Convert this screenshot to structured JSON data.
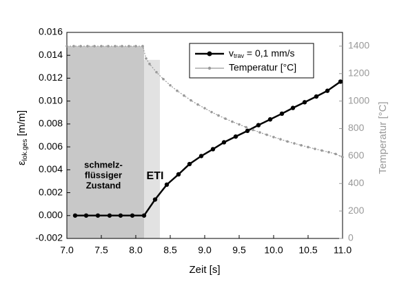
{
  "chart_data": {
    "type": "line",
    "xlabel": "Zeit [s]",
    "ylabel": {
      "symbol": "ε",
      "sub": "lok.ges",
      "unit": " [m/m]"
    },
    "y2label": "Temperatur [°C]",
    "xlim": [
      7.0,
      11.0
    ],
    "xticks": [
      {
        "value": 7.0,
        "label": "7.0"
      },
      7.5,
      {
        "value": 8.0,
        "label": "8.0"
      },
      8.5,
      {
        "value": 9.0,
        "label": "9.0"
      },
      9.5,
      {
        "value": 10.0,
        "label": "10.0"
      },
      10.5,
      {
        "value": 11.0,
        "label": "11.0"
      }
    ],
    "ylim": [
      -0.002,
      0.016
    ],
    "yticks": [
      -0.002,
      {
        "value": 0.0,
        "label": "0.000"
      },
      0.002,
      0.004,
      0.006,
      0.008,
      {
        "value": 0.01,
        "label": "0.010"
      },
      0.012,
      0.014,
      0.016
    ],
    "y2lim": [
      0,
      1500
    ],
    "y2ticks": [
      0,
      200,
      400,
      600,
      800,
      1000,
      1200,
      1400
    ],
    "regions": [
      {
        "x": [
          7.0,
          8.12
        ],
        "top": 1400,
        "color": "#c8c8c8",
        "label": [
          "schmelz-",
          "flüssiger",
          "Zustand"
        ]
      },
      {
        "x": [
          8.12,
          8.35
        ],
        "top": 1300,
        "color": "#e2e2e2",
        "label": [
          "ETI"
        ]
      }
    ],
    "series": [
      {
        "name": {
          "symbol": "v",
          "sub": "trav",
          "rest": " = 0,1 mm/s"
        },
        "color": "#000000",
        "x": [
          7.12,
          7.28,
          7.45,
          7.62,
          7.78,
          7.95,
          8.12,
          8.28,
          8.45,
          8.62,
          8.78,
          8.95,
          9.12,
          9.28,
          9.45,
          9.62,
          9.78,
          9.95,
          10.12,
          10.28,
          10.45,
          10.62,
          10.78,
          10.97
        ],
        "values": [
          0,
          0,
          0,
          0,
          0,
          0,
          0,
          0.0014,
          0.0027,
          0.0036,
          0.0045,
          0.0052,
          0.0058,
          0.0064,
          0.0069,
          0.0074,
          0.0079,
          0.0084,
          0.0089,
          0.0094,
          0.0099,
          0.0104,
          0.0109,
          0.0117
        ]
      },
      {
        "name": "Temperatur [°C]",
        "color": "#999999",
        "axis": "y2",
        "x": [
          7.0,
          7.1,
          7.2,
          7.3,
          7.4,
          7.5,
          7.6,
          7.7,
          7.8,
          7.9,
          8.0,
          8.1,
          8.15,
          8.2,
          8.3,
          8.4,
          8.5,
          8.6,
          8.7,
          8.8,
          8.9,
          9.0,
          9.1,
          9.2,
          9.3,
          9.4,
          9.5,
          9.6,
          9.7,
          9.8,
          9.9,
          10.0,
          10.1,
          10.2,
          10.3,
          10.4,
          10.5,
          10.6,
          10.7,
          10.8,
          10.9,
          11.0
        ],
        "values": [
          1400,
          1400,
          1400,
          1400,
          1400,
          1400,
          1400,
          1400,
          1400,
          1400,
          1400,
          1400,
          1310,
          1270,
          1210,
          1160,
          1115,
          1075,
          1040,
          1005,
          975,
          948,
          920,
          895,
          872,
          850,
          830,
          810,
          790,
          772,
          755,
          738,
          722,
          706,
          692,
          678,
          665,
          652,
          640,
          628,
          615,
          592
        ]
      }
    ]
  }
}
